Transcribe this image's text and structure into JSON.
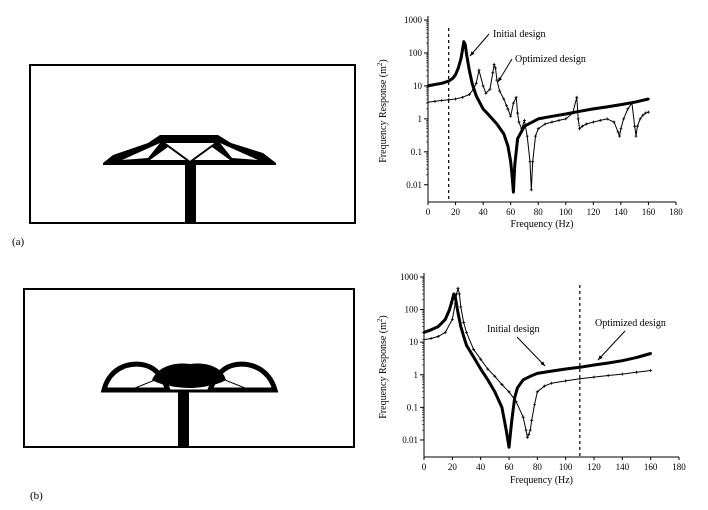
{
  "panels": [
    {
      "label": "(a)"
    },
    {
      "label": "(b)"
    }
  ],
  "chart_data": [
    {
      "type": "line",
      "panel": "(a)",
      "xlabel": "Frequency (Hz)",
      "ylabel": "Frequency Response (m",
      "ylabel_sup": "2",
      "ylabel_close": ")",
      "xlim": [
        0,
        180
      ],
      "ylim": [
        0.003,
        1000
      ],
      "yscale": "log",
      "xticks": [
        "0",
        "20",
        "40",
        "60",
        "80",
        "100",
        "120",
        "140",
        "160",
        "180"
      ],
      "yticks": [
        "1000",
        "100",
        "10",
        "1",
        "0.1",
        "0.01"
      ],
      "reference_line_x": 15,
      "annotations": [
        {
          "text": "Initial design",
          "at_x": 27,
          "at_y": 150
        },
        {
          "text": "Optimized design",
          "at_x": 48,
          "at_y": 10
        }
      ],
      "series": [
        {
          "name": "Initial design",
          "line_width": 3,
          "marker": "small",
          "x": [
            0,
            5,
            10,
            15,
            18,
            20,
            22,
            24,
            25,
            26,
            27,
            28,
            30,
            32,
            35,
            40,
            45,
            50,
            55,
            58,
            60,
            61,
            62,
            63,
            65,
            70,
            80,
            90,
            100,
            110,
            120,
            130,
            140,
            150,
            160
          ],
          "y": [
            10,
            11,
            12,
            14,
            17,
            22,
            35,
            70,
            120,
            220,
            180,
            90,
            30,
            12,
            5,
            2,
            1.2,
            0.7,
            0.35,
            0.15,
            0.05,
            0.02,
            0.006,
            0.04,
            0.25,
            0.6,
            1.0,
            1.2,
            1.4,
            1.7,
            2.0,
            2.3,
            2.7,
            3.2,
            4.0
          ]
        },
        {
          "name": "Optimized design",
          "line_width": 1,
          "marker": "cross",
          "x": [
            0,
            5,
            10,
            15,
            20,
            25,
            30,
            33,
            35,
            37,
            40,
            42,
            45,
            47,
            48,
            49,
            50,
            52,
            55,
            57,
            58,
            60,
            62,
            64,
            65,
            66,
            68,
            70,
            72,
            74,
            75,
            76,
            78,
            80,
            85,
            90,
            95,
            100,
            105,
            108,
            109,
            110,
            112,
            115,
            120,
            125,
            130,
            135,
            138,
            139,
            140,
            142,
            145,
            148,
            150,
            151,
            152,
            154,
            156,
            158,
            160
          ],
          "y": [
            3.2,
            3.4,
            3.6,
            3.8,
            4.0,
            4.5,
            5.5,
            8,
            12,
            30,
            10,
            6,
            8,
            25,
            45,
            35,
            15,
            7,
            4,
            2.5,
            2,
            1.2,
            3,
            4.5,
            1.5,
            0.8,
            0.5,
            0.9,
            0.3,
            0.05,
            0.007,
            0.05,
            0.3,
            0.5,
            0.7,
            0.8,
            0.9,
            1.0,
            1.5,
            4.5,
            1.0,
            0.5,
            0.6,
            0.7,
            0.8,
            0.9,
            1.0,
            0.8,
            0.4,
            0.3,
            0.5,
            1.0,
            2,
            3,
            0.6,
            0.3,
            0.6,
            1,
            1.3,
            1.5,
            1.6
          ]
        }
      ]
    },
    {
      "type": "line",
      "panel": "(b)",
      "xlabel": "Frequency (Hz)",
      "ylabel": "Frequency Response (m",
      "ylabel_sup": "2",
      "ylabel_close": ")",
      "xlim": [
        0,
        180
      ],
      "ylim": [
        0.003,
        1000
      ],
      "yscale": "log",
      "xticks": [
        "0",
        "20",
        "40",
        "60",
        "80",
        "100",
        "120",
        "140",
        "160",
        "180"
      ],
      "yticks": [
        "1000",
        "100",
        "10",
        "1",
        "0.1",
        "0.01"
      ],
      "reference_line_x": 110,
      "annotations": [
        {
          "text": "Initial design",
          "at_x": 85,
          "at_y": 1.6
        },
        {
          "text": "Optimized design",
          "at_x": 125,
          "at_y": 1.0
        }
      ],
      "series": [
        {
          "name": "Initial design",
          "line_width": 3,
          "marker": "small",
          "x": [
            0,
            5,
            10,
            15,
            18,
            20,
            21,
            22,
            24,
            26,
            28,
            30,
            35,
            40,
            45,
            50,
            55,
            58,
            60,
            62,
            64,
            66,
            70,
            75,
            80,
            90,
            100,
            110,
            120,
            130,
            140,
            150,
            160
          ],
          "y": [
            20,
            24,
            30,
            50,
            100,
            200,
            300,
            250,
            80,
            30,
            15,
            8,
            3.5,
            1.5,
            0.7,
            0.3,
            0.1,
            0.02,
            0.006,
            0.04,
            0.2,
            0.4,
            0.7,
            0.9,
            1.1,
            1.3,
            1.5,
            1.7,
            2.0,
            2.3,
            2.7,
            3.4,
            4.5
          ]
        },
        {
          "name": "Optimized design",
          "line_width": 1,
          "marker": "cross",
          "x": [
            0,
            5,
            10,
            15,
            20,
            22,
            23,
            24,
            25,
            26,
            28,
            30,
            35,
            40,
            45,
            50,
            55,
            60,
            65,
            70,
            72,
            73,
            74,
            75,
            76,
            78,
            80,
            85,
            90,
            100,
            110,
            120,
            130,
            140,
            150,
            160
          ],
          "y": [
            12,
            13,
            15,
            20,
            50,
            150,
            300,
            450,
            300,
            120,
            40,
            20,
            6,
            3,
            1.5,
            0.9,
            0.5,
            0.3,
            0.15,
            0.05,
            0.02,
            0.012,
            0.015,
            0.02,
            0.04,
            0.12,
            0.3,
            0.45,
            0.55,
            0.65,
            0.75,
            0.85,
            0.95,
            1.05,
            1.2,
            1.35
          ]
        }
      ]
    }
  ]
}
